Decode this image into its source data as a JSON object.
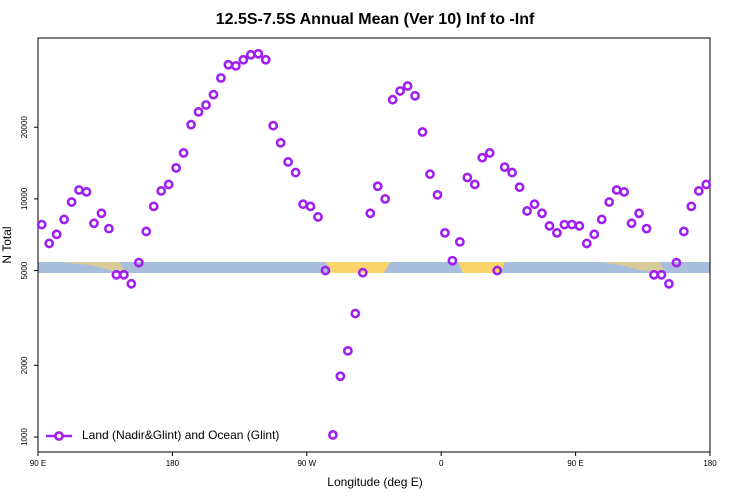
{
  "chart_data": {
    "type": "scatter",
    "title": "12.5S-7.5S Annual Mean (Ver 10)   Inf to -Inf",
    "x_label": "Longitude (deg E)",
    "y_label": "N Total",
    "x": [
      92.5,
      97.5,
      102.5,
      107.5,
      112.5,
      117.5,
      122.5,
      127.5,
      132.5,
      137.5,
      142.5,
      147.5,
      152.5,
      157.5,
      162.5,
      167.5,
      172.5,
      177.5,
      182.5,
      187.5,
      192.5,
      197.5,
      202.5,
      207.5,
      212.5,
      217.5,
      222.5,
      227.5,
      232.5,
      237.5,
      242.5,
      247.5,
      252.5,
      257.5,
      262.5,
      267.5,
      272.5,
      277.5,
      282.5,
      287.5,
      292.5,
      297.5,
      302.5,
      307.5,
      312.5,
      317.5,
      322.5,
      327.5,
      332.5,
      337.5,
      342.5,
      347.5,
      352.5,
      357.5,
      362.5,
      367.5,
      372.5,
      377.5,
      382.5,
      387.5,
      392.5,
      397.5,
      402.5,
      407.5,
      412.5,
      417.5,
      422.5,
      427.5,
      432.5,
      437.5,
      442.5,
      447.5,
      452.5,
      457.5,
      462.5,
      467.5,
      472.5,
      477.5,
      482.5,
      487.5,
      492.5,
      497.5,
      502.5,
      507.5,
      512.5,
      517.5,
      522.5,
      527.5,
      532.5,
      537.5
    ],
    "series": [
      {
        "name": "Land (Nadir&Glint) and Ocean (Glint)",
        "color": "#a020f0",
        "values": [
          7800,
          6500,
          7100,
          8200,
          9700,
          10900,
          10700,
          7900,
          8700,
          7500,
          4800,
          4800,
          4400,
          5400,
          7300,
          9300,
          10800,
          11500,
          13500,
          15600,
          20500,
          23200,
          24800,
          27400,
          32200,
          36600,
          36200,
          38400,
          40300,
          40700,
          38400,
          20300,
          17200,
          14300,
          12900,
          9500,
          9300,
          8400,
          5000,
          1020,
          1800,
          2300,
          3300,
          4900,
          8700,
          11300,
          10000,
          26100,
          28400,
          29800,
          27100,
          19100,
          12700,
          10400,
          7200,
          5500,
          6600,
          12300,
          11500,
          14900,
          15600,
          5000,
          13600,
          12900,
          11200,
          8900,
          9500,
          8700,
          7700,
          7200,
          7800,
          7800,
          7700,
          6500,
          7100,
          8200,
          9700,
          10900,
          10700,
          7900,
          8700,
          7500,
          4800,
          4800,
          4400,
          5400,
          7300,
          9300,
          10800,
          11500
        ]
      }
    ],
    "xlim": [
      90,
      540
    ],
    "xticks": [
      {
        "value": 90,
        "label": "90 E"
      },
      {
        "value": 180,
        "label": "180"
      },
      {
        "value": 270,
        "label": "90 W"
      },
      {
        "value": 360,
        "label": "0"
      },
      {
        "value": 450,
        "label": "90 E"
      },
      {
        "value": 540,
        "label": "180"
      }
    ],
    "ylim": [
      865,
      47400
    ],
    "yticks": [
      1000,
      2000,
      5000,
      10000,
      20000
    ],
    "ylog": true,
    "legend": "bottom-left"
  }
}
